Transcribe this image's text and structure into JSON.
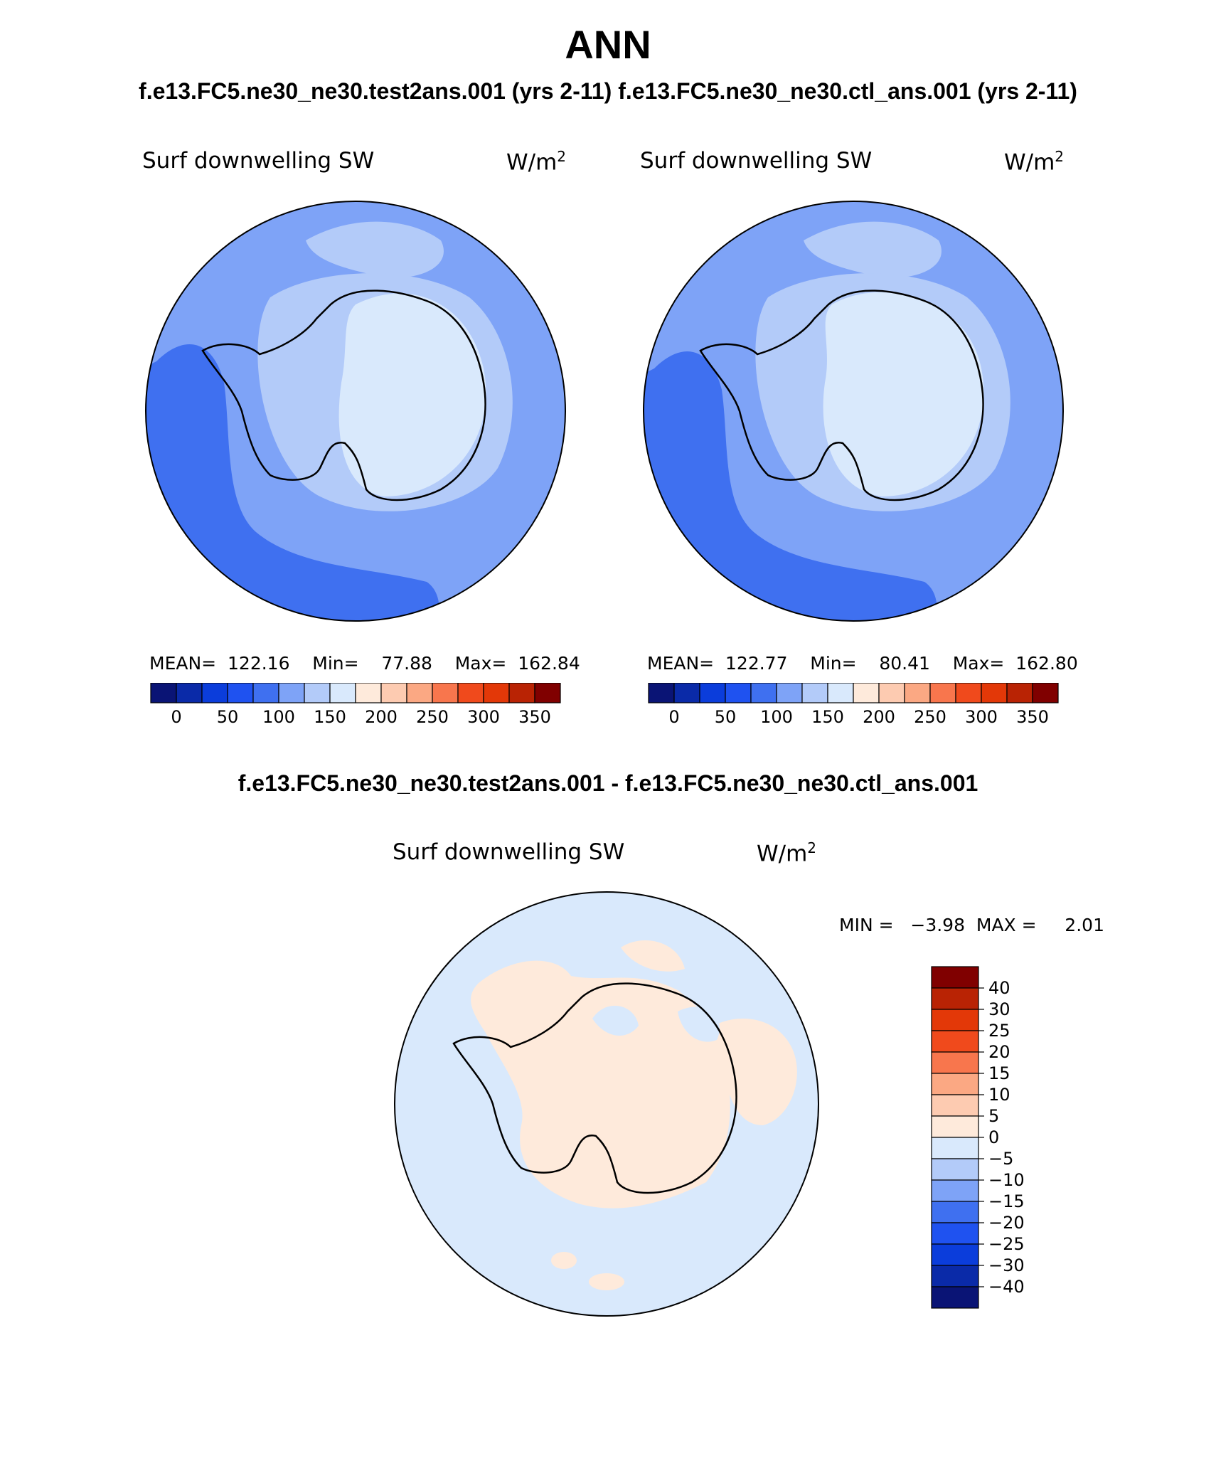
{
  "title": "ANN",
  "subtitle": "f.e13.FC5.ne30_ne30.test2ans.001 (yrs 2-11)   f.e13.FC5.ne30_ne30.ctl_ans.001 (yrs 2-11)",
  "panels": [
    {
      "variable": "Surf downwelling SW",
      "units": "W/m",
      "units_sup": "2",
      "stats": "MEAN=  122.16    Min=    77.88    Max=  162.84"
    },
    {
      "variable": "Surf downwelling SW",
      "units": "W/m",
      "units_sup": "2",
      "stats": "MEAN=  122.77    Min=    80.41    Max=  162.80"
    }
  ],
  "abs_colorbar": {
    "colors": [
      "#0a1475",
      "#0a2aa8",
      "#0b3ddb",
      "#1f52f0",
      "#3f70f0",
      "#7ea3f7",
      "#b3cbf9",
      "#d9e9fc",
      "#feeadb",
      "#fdcbb1",
      "#fba883",
      "#f8764d",
      "#f04a1c",
      "#e33808",
      "#b92304",
      "#800000"
    ],
    "labels": [
      "0",
      "50",
      "100",
      "150",
      "200",
      "250",
      "300",
      "350"
    ]
  },
  "diff": {
    "subtitle": "f.e13.FC5.ne30_ne30.test2ans.001 - f.e13.FC5.ne30_ne30.ctl_ans.001",
    "variable": "Surf downwelling SW",
    "units": "W/m",
    "units_sup": "2",
    "minmax": "MIN =   −3.98  MAX =     2.01"
  },
  "diff_colorbar": {
    "colors_top_to_bottom": [
      "#800000",
      "#b92304",
      "#e33808",
      "#f04a1c",
      "#f8764d",
      "#fba883",
      "#fdcbb1",
      "#feeadb",
      "#d9e9fc",
      "#b3cbf9",
      "#7ea3f7",
      "#3f70f0",
      "#1f52f0",
      "#0b3ddb",
      "#0a2aa8",
      "#0a1475"
    ],
    "labels": [
      "40",
      "30",
      "25",
      "20",
      "15",
      "10",
      "5",
      "0",
      "−5",
      "−10",
      "−15",
      "−20",
      "−25",
      "−30",
      "−40"
    ]
  },
  "map_colors": {
    "ocean_dark": "#3f70f0",
    "ocean_mid": "#7ea3f7",
    "light_blue": "#b3cbf9",
    "ice_white": "#d9e9fc",
    "diff_neg": "#d9e9fc",
    "diff_pos": "#feeadb"
  }
}
